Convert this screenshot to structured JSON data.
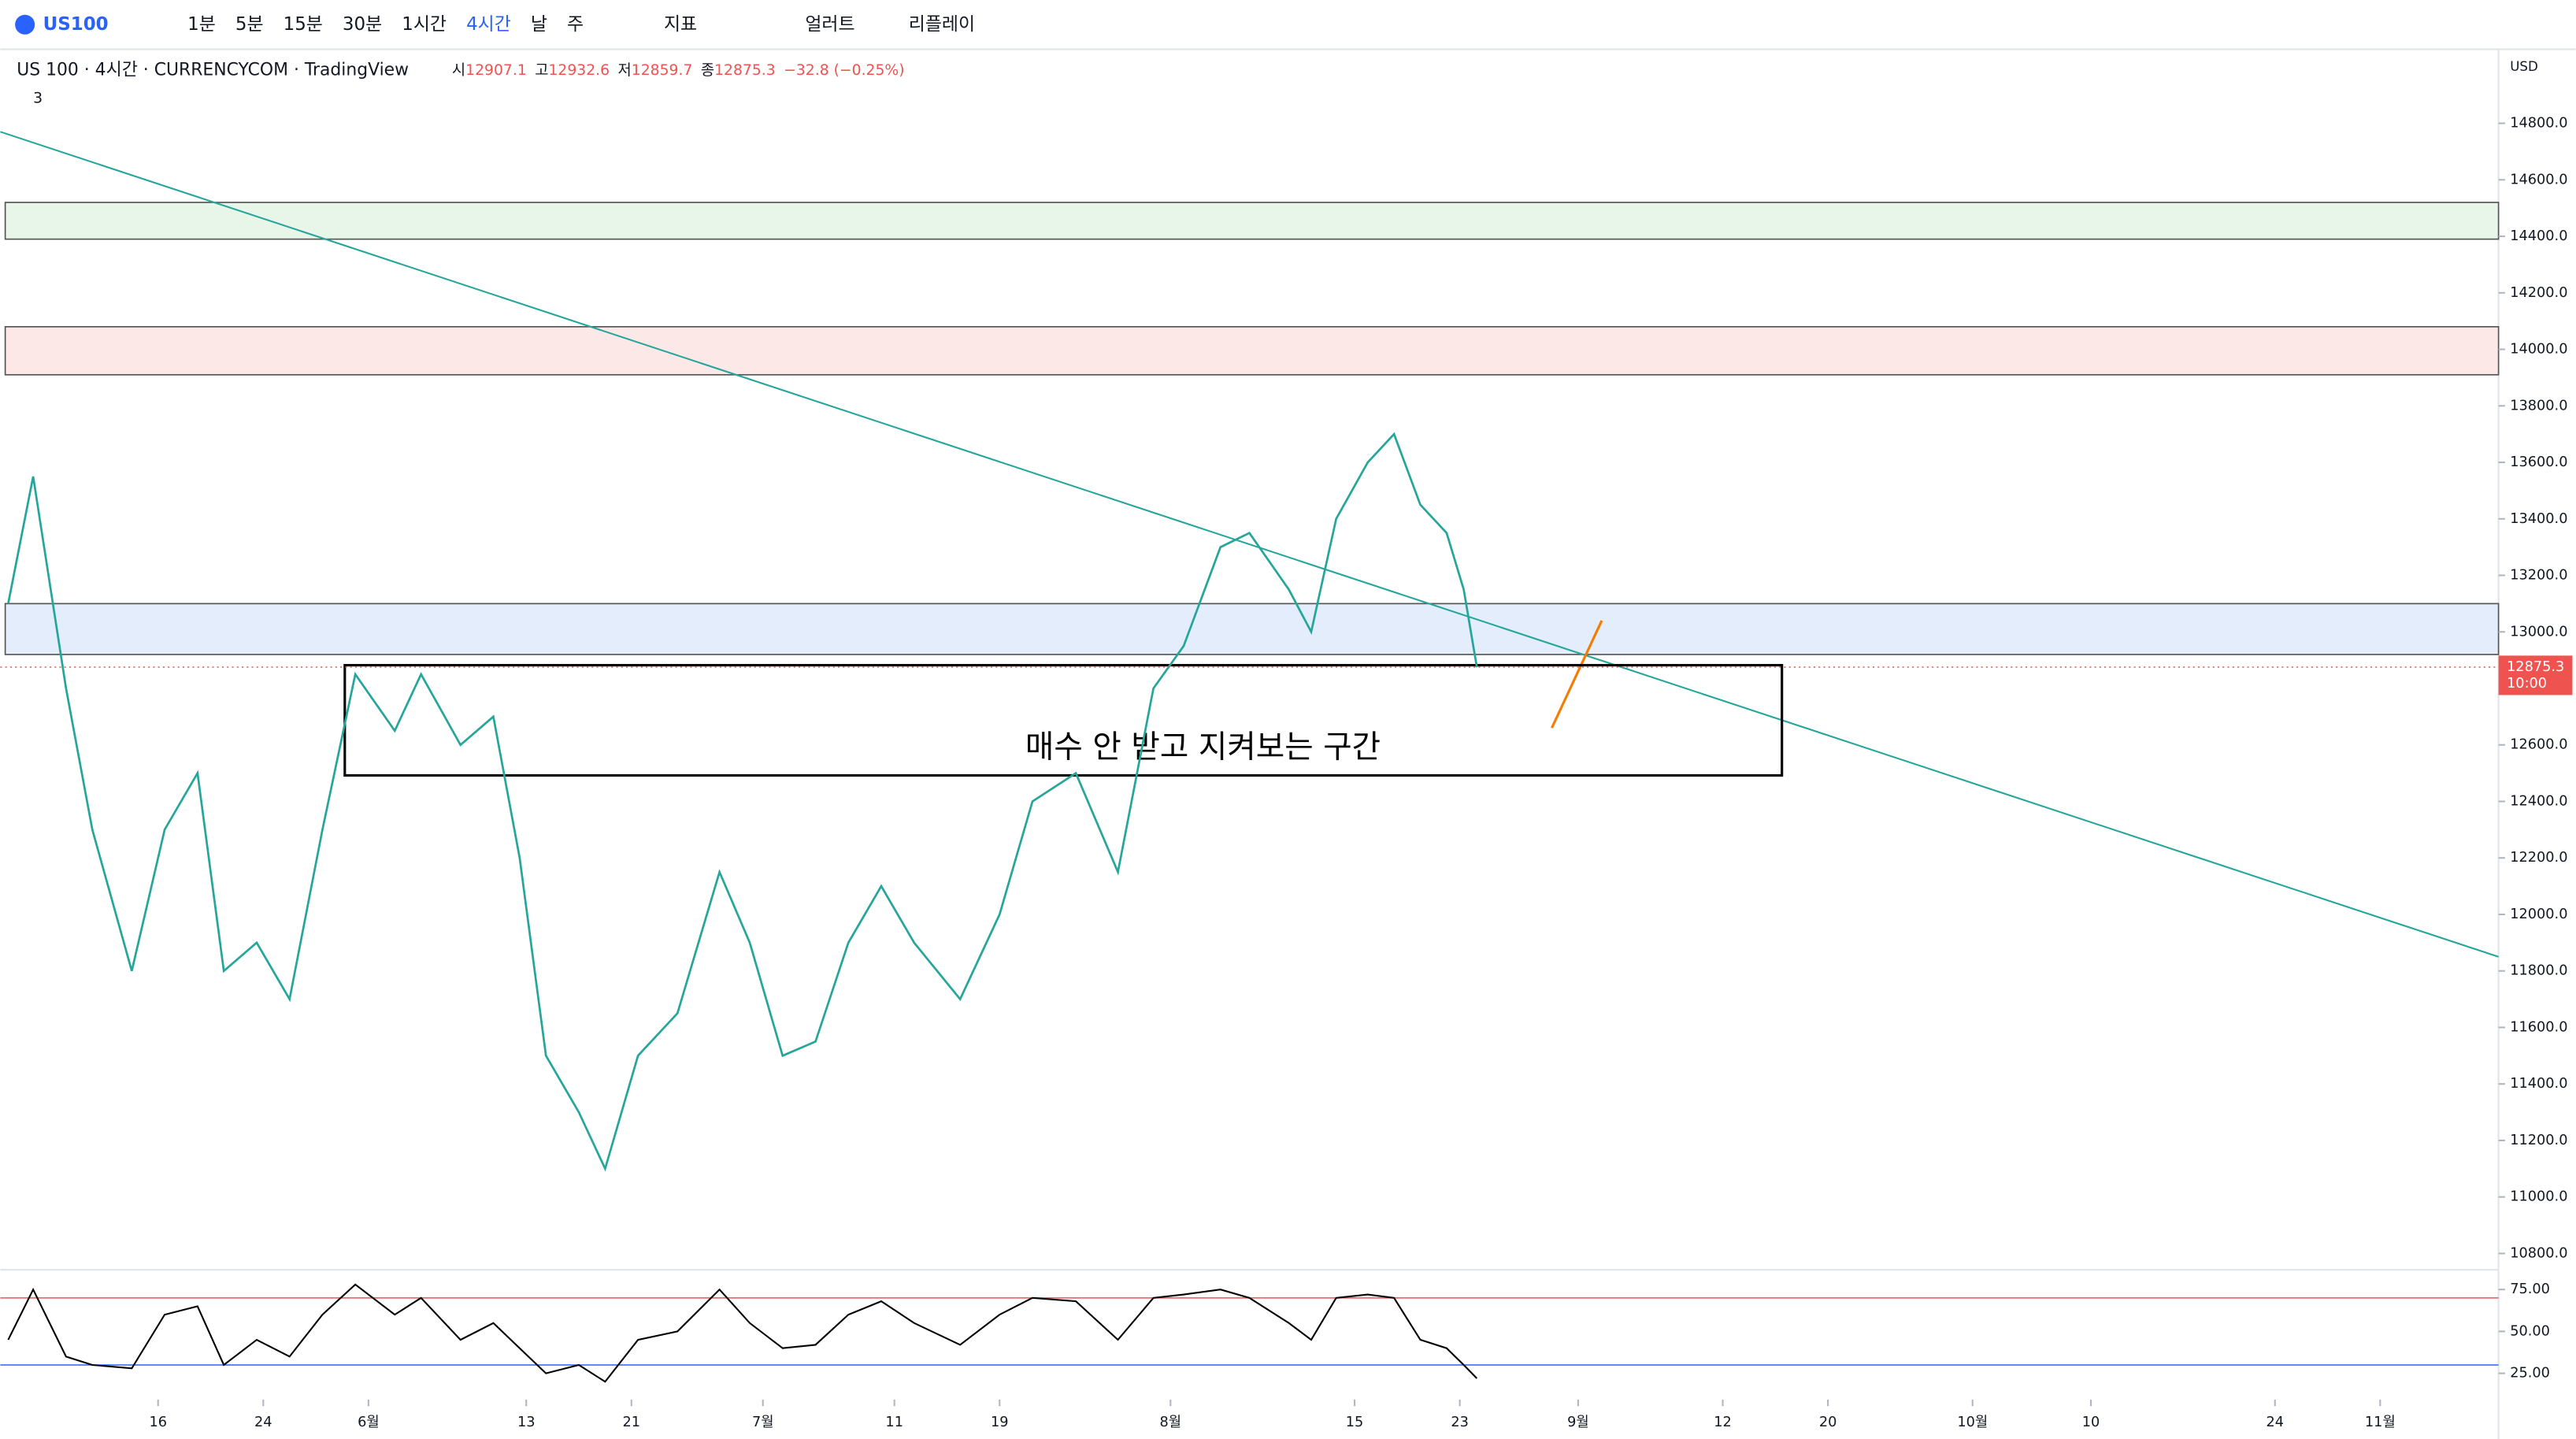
{
  "toolbar": {
    "symbol": "US100",
    "intervals": [
      "1분",
      "5분",
      "15분",
      "30분",
      "1시간",
      "4시간",
      "날",
      "주"
    ],
    "indicators": "지표",
    "alert": "얼러트",
    "replay": "리플레이"
  },
  "legend": {
    "title": "US 100 · 4시간 · CURRENCYCOM · TradingView",
    "open_label": "시",
    "open": "12907.1",
    "high_label": "고",
    "high": "12932.6",
    "low_label": "저",
    "low": "12859.7",
    "close_label": "종",
    "close": "12875.3",
    "change": "−32.8 (−0.25%)",
    "collapsed_count": "3"
  },
  "chart_data": {
    "type": "line",
    "currency": "USD",
    "x": [
      124.6,
      126.5,
      129,
      131,
      134,
      136.5,
      139,
      141,
      143.5,
      146,
      148.5,
      151,
      154,
      156,
      159,
      161.5,
      163.5,
      165.5,
      168,
      170,
      172.5,
      175.5,
      178.7,
      181,
      183.5,
      186,
      188.5,
      191,
      193.5,
      197,
      200,
      202.5,
      205.8,
      209,
      211.7,
      214,
      216.8,
      219,
      222,
      223.7,
      225.6,
      228,
      230,
      232,
      234,
      235.3,
      236.3
    ],
    "series": [
      {
        "name": "US 100",
        "color": "#26a69a",
        "values": [
          13100,
          13550,
          12800,
          12300,
          11800,
          12300,
          12500,
          11800,
          11900,
          11700,
          12300,
          12850,
          12650,
          12850,
          12600,
          12700,
          12200,
          11500,
          11300,
          11100,
          11500,
          11650,
          12150,
          11900,
          11500,
          11550,
          11900,
          12100,
          11900,
          11700,
          12000,
          12400,
          12500,
          12150,
          12800,
          12950,
          13300,
          13350,
          13150,
          13000,
          13400,
          13600,
          13700,
          13450,
          13350,
          13150,
          12875
        ]
      }
    ],
    "xlim": [
      124,
      314
    ],
    "ylim": [
      10748,
      15062
    ],
    "xticks": [
      {
        "value": 136,
        "label": "16"
      },
      {
        "value": 144,
        "label": "24"
      },
      {
        "value": 152,
        "label": "6월"
      },
      {
        "value": 164,
        "label": "13"
      },
      {
        "value": 172,
        "label": "21"
      },
      {
        "value": 182,
        "label": "7월"
      },
      {
        "value": 192,
        "label": "11"
      },
      {
        "value": 200,
        "label": "19"
      },
      {
        "value": 213,
        "label": "8월"
      },
      {
        "value": 227,
        "label": "15"
      },
      {
        "value": 235,
        "label": "23"
      },
      {
        "value": 244,
        "label": "9월"
      },
      {
        "value": 255,
        "label": "12"
      },
      {
        "value": 263,
        "label": "20"
      },
      {
        "value": 274,
        "label": "10월"
      },
      {
        "value": 283,
        "label": "10"
      },
      {
        "value": 297,
        "label": "24"
      },
      {
        "value": 305,
        "label": "11월"
      }
    ],
    "yticks": [
      {
        "value": 14800,
        "label": "14800.0"
      },
      {
        "value": 14600,
        "label": "14600.0"
      },
      {
        "value": 14400,
        "label": "14400.0"
      },
      {
        "value": 14200,
        "label": "14200.0"
      },
      {
        "value": 14000,
        "label": "14000.0"
      },
      {
        "value": 13800,
        "label": "13800.0"
      },
      {
        "value": 13600,
        "label": "13600.0"
      },
      {
        "value": 13400,
        "label": "13400.0"
      },
      {
        "value": 13200,
        "label": "13200.0"
      },
      {
        "value": 13000,
        "label": "13000.0"
      },
      {
        "value": 12600,
        "label": "12600.0"
      },
      {
        "value": 12400,
        "label": "12400.0"
      },
      {
        "value": 12200,
        "label": "12200.0"
      },
      {
        "value": 12000,
        "label": "12000.0"
      },
      {
        "value": 11800,
        "label": "11800.0"
      },
      {
        "value": 11600,
        "label": "11600.0"
      },
      {
        "value": 11400,
        "label": "11400.0"
      },
      {
        "value": 11200,
        "label": "11200.0"
      },
      {
        "value": 11000,
        "label": "11000.0"
      },
      {
        "value": 10800,
        "label": "10800.0"
      }
    ],
    "last_price": {
      "value": 12875.3,
      "label": "12875.3",
      "time": "10:00"
    },
    "zones": [
      {
        "from": 14390,
        "to": 14520,
        "color": "#e8f5e9"
      },
      {
        "from": 13910,
        "to": 14080,
        "color": "#fde8e8"
      },
      {
        "from": 12920,
        "to": 13100,
        "color": "#e3edfb"
      }
    ],
    "trendline": {
      "x": [
        124,
        314
      ],
      "y": [
        14770,
        11850
      ],
      "color": "#26a69a"
    },
    "pen": {
      "x": [
        242,
        245.8
      ],
      "y": [
        12660,
        13040
      ],
      "color": "#f57c00"
    },
    "box": {
      "x": [
        150.2,
        259.5
      ],
      "y": [
        12882,
        12492
      ],
      "text": "매수 안 받고 지켜보는 구간"
    },
    "rsi": {
      "ylim": [
        11.3,
        84.8
      ],
      "yticks": [
        {
          "value": 75,
          "label": "75.00"
        },
        {
          "value": 50,
          "label": "50.00"
        },
        {
          "value": 25,
          "label": "25.00"
        }
      ],
      "bands": [
        70,
        30
      ],
      "values": [
        45,
        75,
        35,
        30,
        28,
        60,
        65,
        30,
        45,
        35,
        60,
        78,
        60,
        70,
        45,
        55,
        40,
        25,
        30,
        20,
        45,
        50,
        75,
        55,
        40,
        42,
        60,
        68,
        55,
        42,
        60,
        70,
        68,
        45,
        70,
        72,
        75,
        70,
        55,
        45,
        70,
        72,
        70,
        45,
        40,
        30,
        22
      ]
    }
  }
}
